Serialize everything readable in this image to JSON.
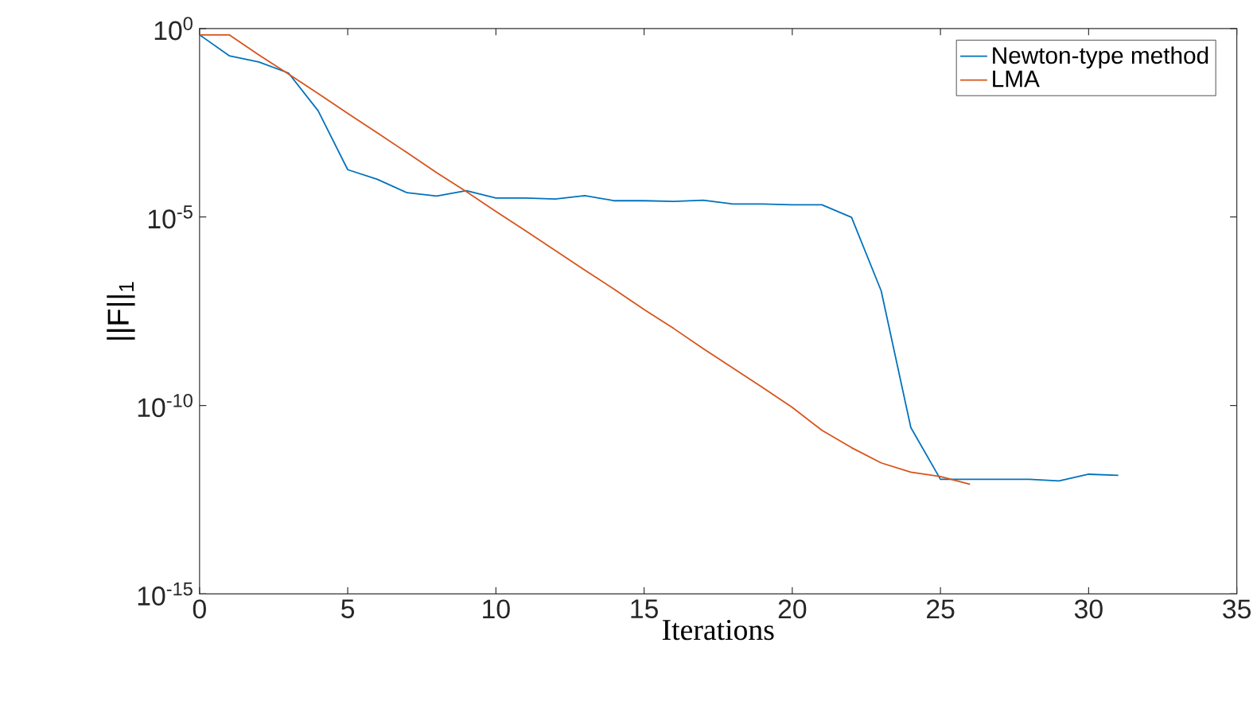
{
  "chart_data": {
    "type": "line",
    "xlabel": "Iterations",
    "ylabel": "||F||$_{1}$",
    "log": "y",
    "legend": "top right",
    "grid": false,
    "line_style": "solid",
    "marker": "none",
    "xlim": [
      0,
      35
    ],
    "xticks": [
      0,
      5,
      10,
      15,
      20,
      25,
      30,
      35
    ],
    "ylim": [
      1e-15,
      1
    ],
    "yticks": [
      {
        "value": 1e-15,
        "label": "10$^{-15}$"
      },
      {
        "value": 1e-10,
        "label": "10$^{-10}$"
      },
      {
        "value": 1e-05,
        "label": "10$^{-5}$"
      },
      {
        "value": 1,
        "label": "10$^{0}$"
      }
    ],
    "x": [
      0,
      1,
      2,
      3,
      4,
      5,
      6,
      7,
      8,
      9,
      10,
      11,
      12,
      13,
      14,
      15,
      16,
      17,
      18,
      19,
      20,
      21,
      22,
      23,
      24,
      25,
      26,
      27,
      28,
      29,
      30,
      31
    ],
    "series": [
      {
        "name": "Newton-type method",
        "color": "#0072bd",
        "values": [
          0.68,
          0.19,
          0.13,
          0.066,
          0.0066,
          0.00018,
          0.0001,
          4.4e-05,
          3.6e-05,
          5e-05,
          3.2e-05,
          3.2e-05,
          3e-05,
          3.7e-05,
          2.7e-05,
          2.7e-05,
          2.6e-05,
          2.8e-05,
          2.2e-05,
          2.2e-05,
          2.1e-05,
          2.1e-05,
          9.8e-06,
          1.1e-07,
          2.6e-11,
          1.1e-12,
          1.1e-12,
          1.1e-12,
          1.1e-12,
          1e-12,
          1.5e-12,
          1.4e-12
        ]
      },
      {
        "name": "LMA",
        "color": "#d95319",
        "x": [
          0,
          1,
          2,
          3,
          4,
          5,
          6,
          7,
          8,
          9,
          10,
          11,
          12,
          13,
          14,
          15,
          16,
          17,
          18,
          19,
          20,
          21,
          22,
          23,
          24,
          25,
          26
        ],
        "values": [
          0.68,
          0.68,
          0.2,
          0.062,
          0.019,
          0.0056,
          0.0017,
          0.00051,
          0.00015,
          4.7e-05,
          1.4e-05,
          4.3e-06,
          1.3e-06,
          3.9e-07,
          1.2e-07,
          3.5e-08,
          1.1e-08,
          3.2e-09,
          9.8e-10,
          3e-10,
          8.9e-11,
          2.2e-11,
          7.6e-12,
          3e-12,
          1.7e-12,
          1.3e-12,
          8.1e-13
        ]
      }
    ]
  }
}
